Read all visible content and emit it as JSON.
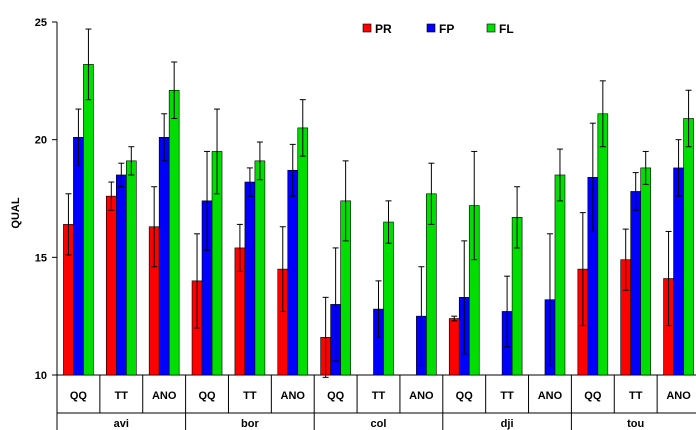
{
  "chart_data": {
    "type": "bar",
    "title": "",
    "xlabel": "",
    "ylabel": "QUAL",
    "ylim": [
      10,
      25
    ],
    "yticks": [
      10,
      15,
      20,
      25
    ],
    "grid": false,
    "legend_position": "top-center",
    "groups": [
      "avi",
      "bor",
      "col",
      "dji",
      "tou"
    ],
    "subcategories": [
      "QQ",
      "TT",
      "ANO"
    ],
    "series": [
      {
        "name": "PR",
        "color": "#ff0000",
        "values": [
          [
            16.4,
            17.6,
            16.3
          ],
          [
            14.0,
            15.4,
            14.5
          ],
          [
            11.6,
            null,
            null
          ],
          [
            12.4,
            null,
            null
          ],
          [
            14.5,
            14.9,
            14.1
          ]
        ],
        "errors": [
          [
            1.3,
            0.6,
            1.7
          ],
          [
            2.0,
            1.0,
            1.8
          ],
          [
            1.7,
            null,
            null
          ],
          [
            0.1,
            null,
            null
          ],
          [
            2.4,
            1.3,
            2.0
          ]
        ]
      },
      {
        "name": "FP",
        "color": "#0000ff",
        "values": [
          [
            20.1,
            18.5,
            20.1
          ],
          [
            17.4,
            18.2,
            18.7
          ],
          [
            13.0,
            12.8,
            12.5
          ],
          [
            13.3,
            12.7,
            13.2
          ],
          [
            18.4,
            17.8,
            18.8
          ]
        ],
        "errors": [
          [
            1.2,
            0.5,
            1.0
          ],
          [
            2.1,
            0.6,
            1.1
          ],
          [
            2.4,
            1.2,
            2.1
          ],
          [
            2.4,
            1.5,
            2.8
          ],
          [
            2.3,
            0.8,
            1.2
          ]
        ]
      },
      {
        "name": "FL",
        "color": "#00dd00",
        "values": [
          [
            23.2,
            19.1,
            22.1
          ],
          [
            19.5,
            19.1,
            20.5
          ],
          [
            17.4,
            16.5,
            17.7
          ],
          [
            17.2,
            16.7,
            18.5
          ],
          [
            21.1,
            18.8,
            20.9
          ]
        ],
        "errors": [
          [
            1.5,
            0.6,
            1.2
          ],
          [
            1.8,
            0.8,
            1.2
          ],
          [
            1.7,
            0.9,
            1.3
          ],
          [
            2.3,
            1.3,
            1.1
          ],
          [
            1.4,
            0.7,
            1.2
          ]
        ]
      }
    ]
  }
}
